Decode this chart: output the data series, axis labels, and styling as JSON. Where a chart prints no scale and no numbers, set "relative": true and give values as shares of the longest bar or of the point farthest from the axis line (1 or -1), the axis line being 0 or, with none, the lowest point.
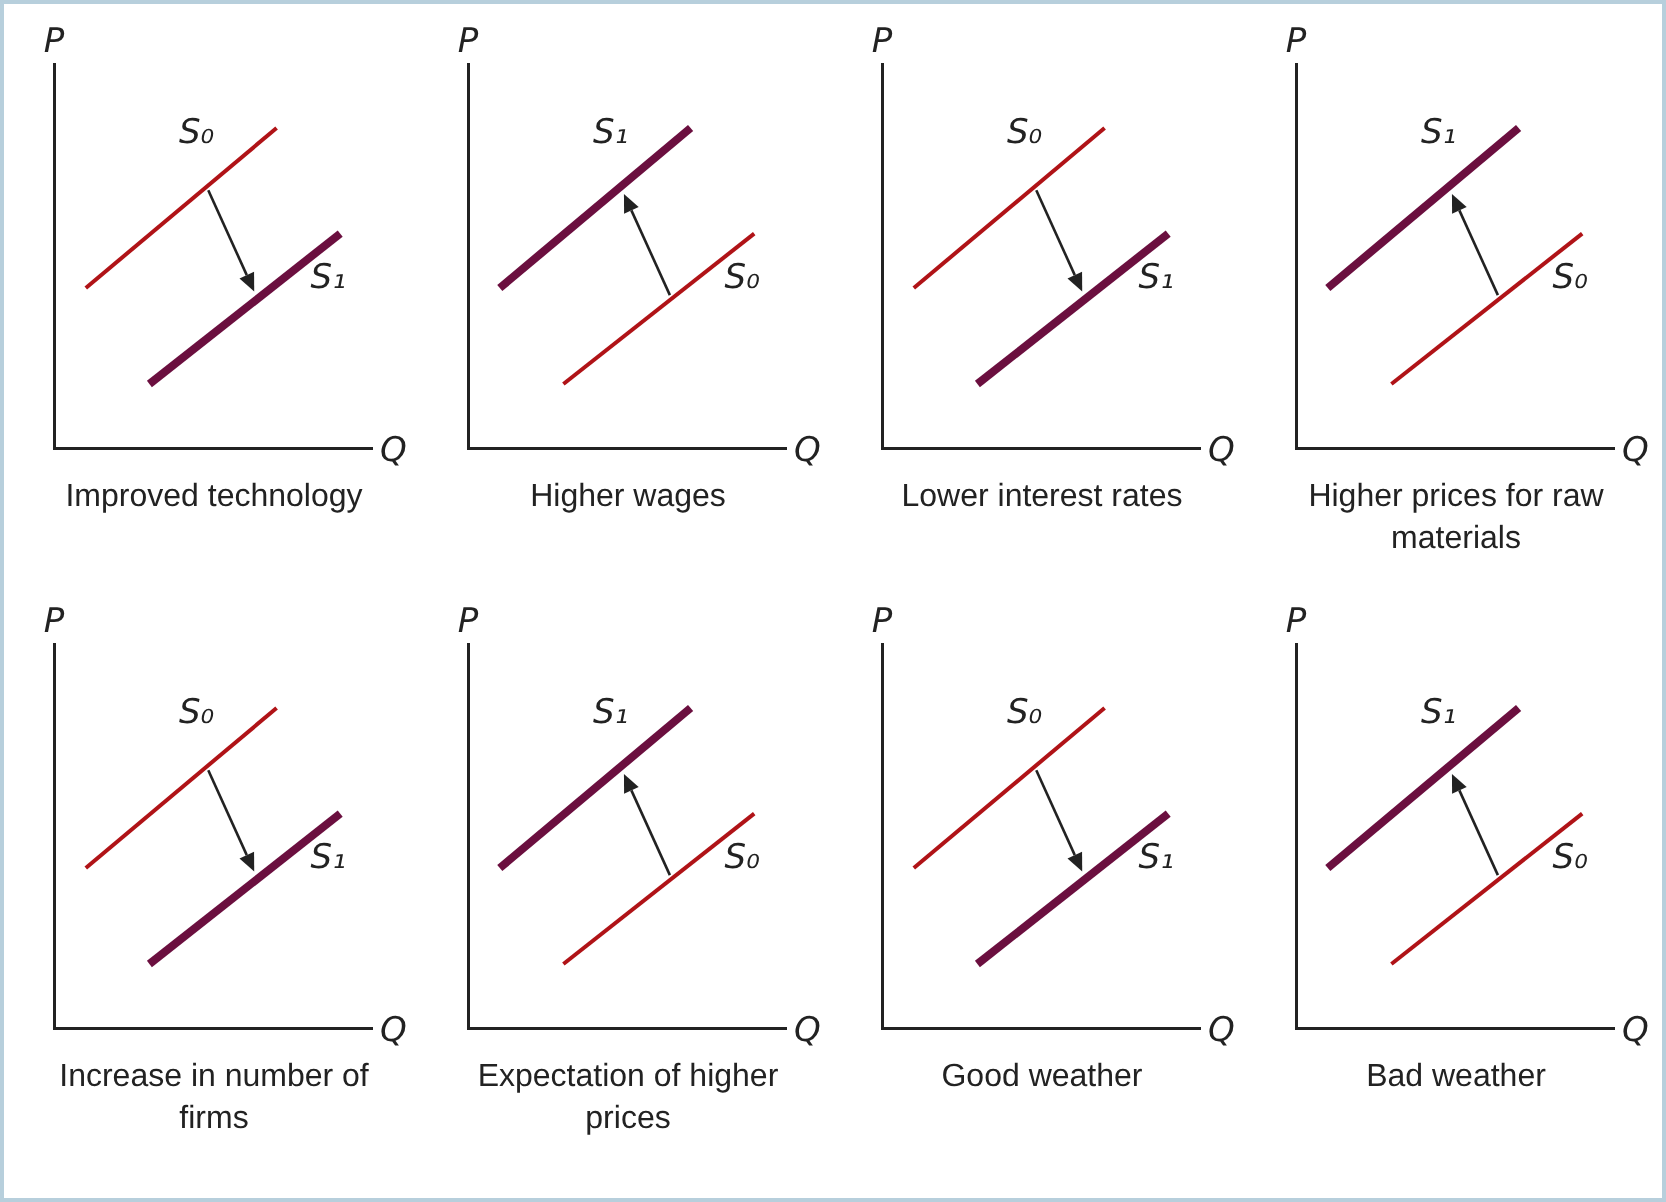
{
  "chart_data": [
    {
      "type": "line",
      "title": "Improved technology",
      "xlabel": "Q",
      "ylabel": "P",
      "relative": true,
      "legend": false,
      "grid": false,
      "tick_labels": false,
      "marker": "none",
      "categories": [
        null,
        null,
        null,
        null,
        null
      ],
      "series": [
        {
          "name": "S₀",
          "color": "#b01317",
          "values": [
            0.5,
            null,
            null,
            1,
            null
          ]
        },
        {
          "name": "S₁",
          "color": "#6b0f3f",
          "values": [
            null,
            0.2,
            null,
            null,
            0.67
          ]
        }
      ]
    },
    {
      "type": "line",
      "title": "Higher wages",
      "xlabel": "Q",
      "ylabel": "P",
      "relative": true,
      "legend": false,
      "grid": false,
      "tick_labels": false,
      "marker": "none",
      "categories": [
        null,
        null,
        null,
        null,
        null
      ],
      "series": [
        {
          "name": "S₀",
          "color": "#b01317",
          "values": [
            null,
            0.2,
            null,
            null,
            0.67
          ]
        },
        {
          "name": "S₁",
          "color": "#6b0f3f",
          "values": [
            0.5,
            null,
            null,
            1,
            null
          ]
        }
      ]
    },
    {
      "type": "line",
      "title": "Lower interest rates",
      "xlabel": "Q",
      "ylabel": "P",
      "relative": true,
      "legend": false,
      "grid": false,
      "tick_labels": false,
      "marker": "none",
      "categories": [
        null,
        null,
        null,
        null,
        null
      ],
      "series": [
        {
          "name": "S₀",
          "color": "#b01317",
          "values": [
            0.5,
            null,
            null,
            1,
            null
          ]
        },
        {
          "name": "S₁",
          "color": "#6b0f3f",
          "values": [
            null,
            0.2,
            null,
            null,
            0.67
          ]
        }
      ]
    },
    {
      "type": "line",
      "title": "Higher prices for raw materials",
      "xlabel": "Q",
      "ylabel": "P",
      "relative": true,
      "legend": false,
      "grid": false,
      "tick_labels": false,
      "marker": "none",
      "categories": [
        null,
        null,
        null,
        null,
        null
      ],
      "series": [
        {
          "name": "S₀",
          "color": "#b01317",
          "values": [
            null,
            0.2,
            null,
            null,
            0.67
          ]
        },
        {
          "name": "S₁",
          "color": "#6b0f3f",
          "values": [
            0.5,
            null,
            null,
            1,
            null
          ]
        }
      ]
    },
    {
      "type": "line",
      "title": "Increase in number of firms",
      "xlabel": "Q",
      "ylabel": "P",
      "relative": true,
      "legend": false,
      "grid": false,
      "tick_labels": false,
      "marker": "none",
      "categories": [
        null,
        null,
        null,
        null,
        null
      ],
      "series": [
        {
          "name": "S₀",
          "color": "#b01317",
          "values": [
            0.5,
            null,
            null,
            1,
            null
          ]
        },
        {
          "name": "S₁",
          "color": "#6b0f3f",
          "values": [
            null,
            0.2,
            null,
            null,
            0.67
          ]
        }
      ]
    },
    {
      "type": "line",
      "title": "Expectation of higher prices",
      "xlabel": "Q",
      "ylabel": "P",
      "relative": true,
      "legend": false,
      "grid": false,
      "tick_labels": false,
      "marker": "none",
      "categories": [
        null,
        null,
        null,
        null,
        null
      ],
      "series": [
        {
          "name": "S₀",
          "color": "#b01317",
          "values": [
            null,
            0.2,
            null,
            null,
            0.67
          ]
        },
        {
          "name": "S₁",
          "color": "#6b0f3f",
          "values": [
            0.5,
            null,
            null,
            1,
            null
          ]
        }
      ]
    },
    {
      "type": "line",
      "title": "Good weather",
      "xlabel": "Q",
      "ylabel": "P",
      "relative": true,
      "legend": false,
      "grid": false,
      "tick_labels": false,
      "marker": "none",
      "categories": [
        null,
        null,
        null,
        null,
        null
      ],
      "series": [
        {
          "name": "S₀",
          "color": "#b01317",
          "values": [
            0.5,
            null,
            null,
            1,
            null
          ]
        },
        {
          "name": "S₁",
          "color": "#6b0f3f",
          "values": [
            null,
            0.2,
            null,
            null,
            0.67
          ]
        }
      ]
    },
    {
      "type": "line",
      "title": "Bad weather",
      "xlabel": "Q",
      "ylabel": "P",
      "relative": true,
      "legend": false,
      "grid": false,
      "tick_labels": false,
      "marker": "none",
      "categories": [
        null,
        null,
        null,
        null,
        null
      ],
      "series": [
        {
          "name": "S₀",
          "color": "#b01317",
          "values": [
            null,
            0.2,
            null,
            null,
            0.67
          ]
        },
        {
          "name": "S₁",
          "color": "#6b0f3f",
          "values": [
            0.5,
            null,
            null,
            1,
            null
          ]
        }
      ]
    }
  ]
}
